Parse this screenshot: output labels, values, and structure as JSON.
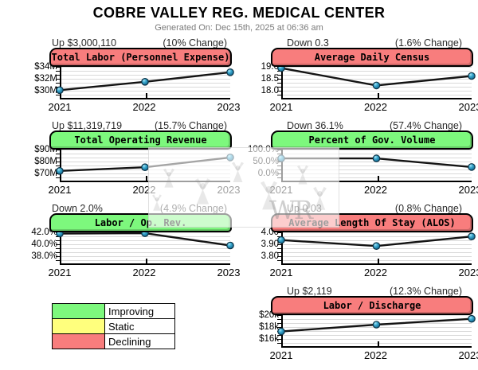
{
  "header": {
    "title": "COBRE VALLEY REG. MEDICAL CENTER",
    "generated": "Generated On: Dec 15th, 2025 at 06:36 am"
  },
  "status_colors": {
    "improving": "#7DF87D",
    "static": "#FFFF7D",
    "declining": "#F87D7D"
  },
  "point_style": {
    "fill": "#2E9FC7",
    "outline": "#0B3246",
    "line": "#141414"
  },
  "legend": {
    "items": [
      {
        "label": "Improving",
        "color": "#7DF87D"
      },
      {
        "label": "Static",
        "color": "#FFFF7D"
      },
      {
        "label": "Declining",
        "color": "#F87D7D"
      }
    ]
  },
  "watermark": {
    "text": "WR"
  },
  "chart_data": [
    {
      "id": "total-labor",
      "type": "line",
      "delta": "Up $3,000,110",
      "change": "(10% Change)",
      "title": "Total Labor (Personnel Expense)",
      "status": "declining",
      "x": [
        "2021",
        "2022",
        "2023"
      ],
      "values": [
        30.1,
        31.5,
        33.1
      ],
      "unit": "$M",
      "yticks": [
        {
          "label": "$34M",
          "value": 34
        },
        {
          "label": "$32M",
          "value": 32
        },
        {
          "label": "$30M",
          "value": 30
        }
      ],
      "ylim": [
        28.8,
        34.67
      ]
    },
    {
      "id": "average-daily-census",
      "type": "line",
      "delta": "Down 0.3",
      "change": "(1.6% Change)",
      "title": "Average Daily Census",
      "status": "declining",
      "x": [
        "2021",
        "2022",
        "2023"
      ],
      "values": [
        18.95,
        18.22,
        18.62
      ],
      "unit": "patients",
      "yticks": [
        {
          "label": "19.0",
          "value": 19.0
        },
        {
          "label": "18.5",
          "value": 18.5
        },
        {
          "label": "18.0",
          "value": 18.0
        }
      ],
      "ylim": [
        17.7,
        19.17
      ]
    },
    {
      "id": "total-operating-revenue",
      "type": "line",
      "delta": "Up $11,319,719",
      "change": "(15.7% Change)",
      "title": "Total Operating Revenue",
      "status": "improving",
      "x": [
        "2021",
        "2022",
        "2023"
      ],
      "values": [
        72.1,
        75.2,
        83.4
      ],
      "unit": "$M",
      "yticks": [
        {
          "label": "$90M",
          "value": 90
        },
        {
          "label": "$80M",
          "value": 80
        },
        {
          "label": "$70M",
          "value": 70
        }
      ],
      "ylim": [
        64,
        93.33
      ]
    },
    {
      "id": "percent-gov-volume",
      "type": "line",
      "delta": "Down 36.1%",
      "change": "(57.4% Change)",
      "title": "Percent of Gov. Volume",
      "status": "improving",
      "x": [
        "2021",
        "2022",
        "2023"
      ],
      "values": [
        63,
        63,
        26.9
      ],
      "unit": "%",
      "yticks": [
        {
          "label": "100.0%",
          "value": 100
        },
        {
          "label": "50.0%",
          "value": 50
        },
        {
          "label": "0.0%",
          "value": 0
        }
      ],
      "ylim": [
        -30,
        116.67
      ]
    },
    {
      "id": "labor-op-rev",
      "type": "line",
      "delta": "Down 2.0%",
      "change": "(4.9% Change)",
      "title": "Labor / Op. Rev.",
      "status": "improving",
      "x": [
        "2021",
        "2022",
        "2023"
      ],
      "values": [
        41.8,
        41.85,
        39.8
      ],
      "unit": "%",
      "yticks": [
        {
          "label": "42.0%",
          "value": 42
        },
        {
          "label": "40.0%",
          "value": 40
        },
        {
          "label": "38.0%",
          "value": 38
        }
      ],
      "ylim": [
        36.8,
        42.67
      ]
    },
    {
      "id": "alos",
      "type": "line",
      "delta": "Up 0.03",
      "change": "(0.8% Change)",
      "title": "Average Length Of Stay (ALOS)",
      "status": "declining",
      "x": [
        "2021",
        "2022",
        "2023"
      ],
      "values": [
        3.935,
        3.885,
        3.965
      ],
      "unit": "days",
      "yticks": [
        {
          "label": "4.00",
          "value": 4.0
        },
        {
          "label": "3.90",
          "value": 3.9
        },
        {
          "label": "3.80",
          "value": 3.8
        }
      ],
      "ylim": [
        3.74,
        4.033
      ]
    },
    {
      "id": "labor-discharge",
      "type": "line",
      "delta": "Up $2,119",
      "change": "(12.3% Change)",
      "title": "Labor / Discharge",
      "status": "declining",
      "x": [
        "2021",
        "2022",
        "2023"
      ],
      "values": [
        17.25,
        18.4,
        19.37
      ],
      "unit": "$k",
      "yticks": [
        {
          "label": "$20k",
          "value": 20
        },
        {
          "label": "$18k",
          "value": 18
        },
        {
          "label": "$16k",
          "value": 16
        }
      ],
      "ylim": [
        14.8,
        20.67
      ]
    }
  ]
}
